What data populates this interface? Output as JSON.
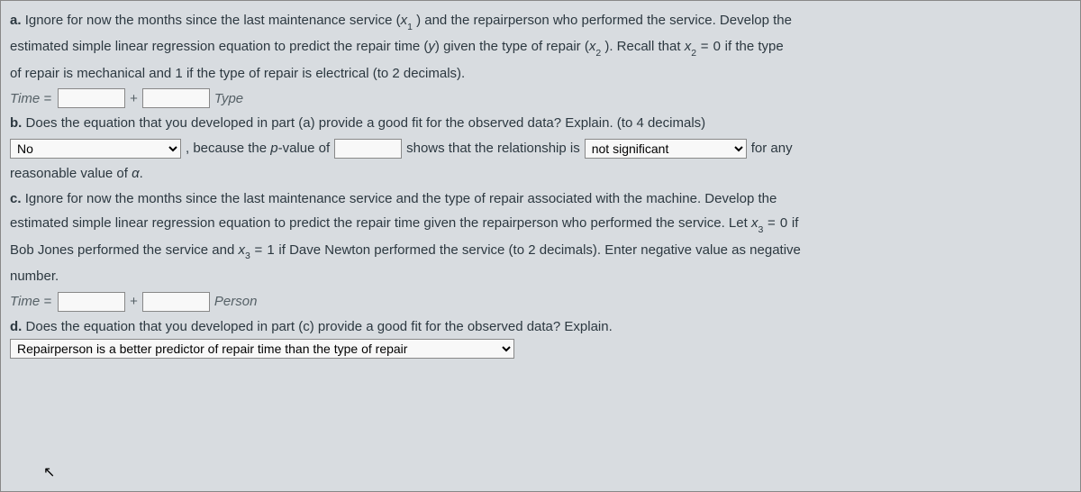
{
  "background_color": "#d8dce0",
  "text_color": "#2c3840",
  "part_a": {
    "label": "a.",
    "text_line1_before_x1": "Ignore for now the months since the last maintenance service (",
    "x1": "x",
    "x1_sub": "1",
    "text_line1_after_x1": " ) and the repairperson who performed the service. Develop the",
    "text_line2_before_y": "estimated simple linear regression equation to predict the repair time (",
    "y": "y",
    "text_line2_mid": ") given the type of repair (",
    "x2": "x",
    "x2_sub": "2",
    "text_line2_after_x2": " ). Recall that ",
    "x2b": "x",
    "x2b_sub": "2",
    "eq0": " = 0",
    "text_line2_end": " if the type",
    "text_line3": "of repair is mechanical and 1 if the type of repair is electrical (to 2 decimals)."
  },
  "eq_a": {
    "time_label": "Time =",
    "plus": "+",
    "type_label": "Type"
  },
  "part_b": {
    "label": "b.",
    "text": "Does the equation that you developed in part (a) provide a good fit for the observed data? Explain. (to 4 decimals)"
  },
  "b_row": {
    "sel1_value": "No",
    "mid1_pre": ", because the ",
    "p": "p",
    "mid1_post": "-value of",
    "mid2": "shows that the relationship is",
    "sel2_value": "not significant",
    "after": "for any"
  },
  "b_tail": {
    "text_pre": "reasonable value of ",
    "alpha": "α",
    "text_post": "."
  },
  "part_c": {
    "label": "c.",
    "l1": "Ignore for now the months since the last maintenance service and the type of repair associated with the machine. Develop the",
    "l2_a": "estimated simple linear regression equation to predict the repair time given the repairperson who performed the service. Let ",
    "x3": "x",
    "x3_sub": "3",
    "eq0": " = 0",
    "l2_b": " if",
    "l3_a": "Bob Jones performed the service and ",
    "x3b": "x",
    "x3b_sub": "3",
    "eq1": " = 1",
    "l3_b": " if Dave Newton performed the service (to 2 decimals). Enter negative value as negative",
    "l4": "number."
  },
  "eq_c": {
    "time_label": "Time =",
    "plus": "+",
    "person_label": "Person"
  },
  "part_d": {
    "label": "d.",
    "text": "Does the equation that you developed in part (c) provide a good fit for the observed data? Explain."
  },
  "d_row": {
    "sel_value": "Repairperson is a better predictor of repair time than the type of repair"
  }
}
